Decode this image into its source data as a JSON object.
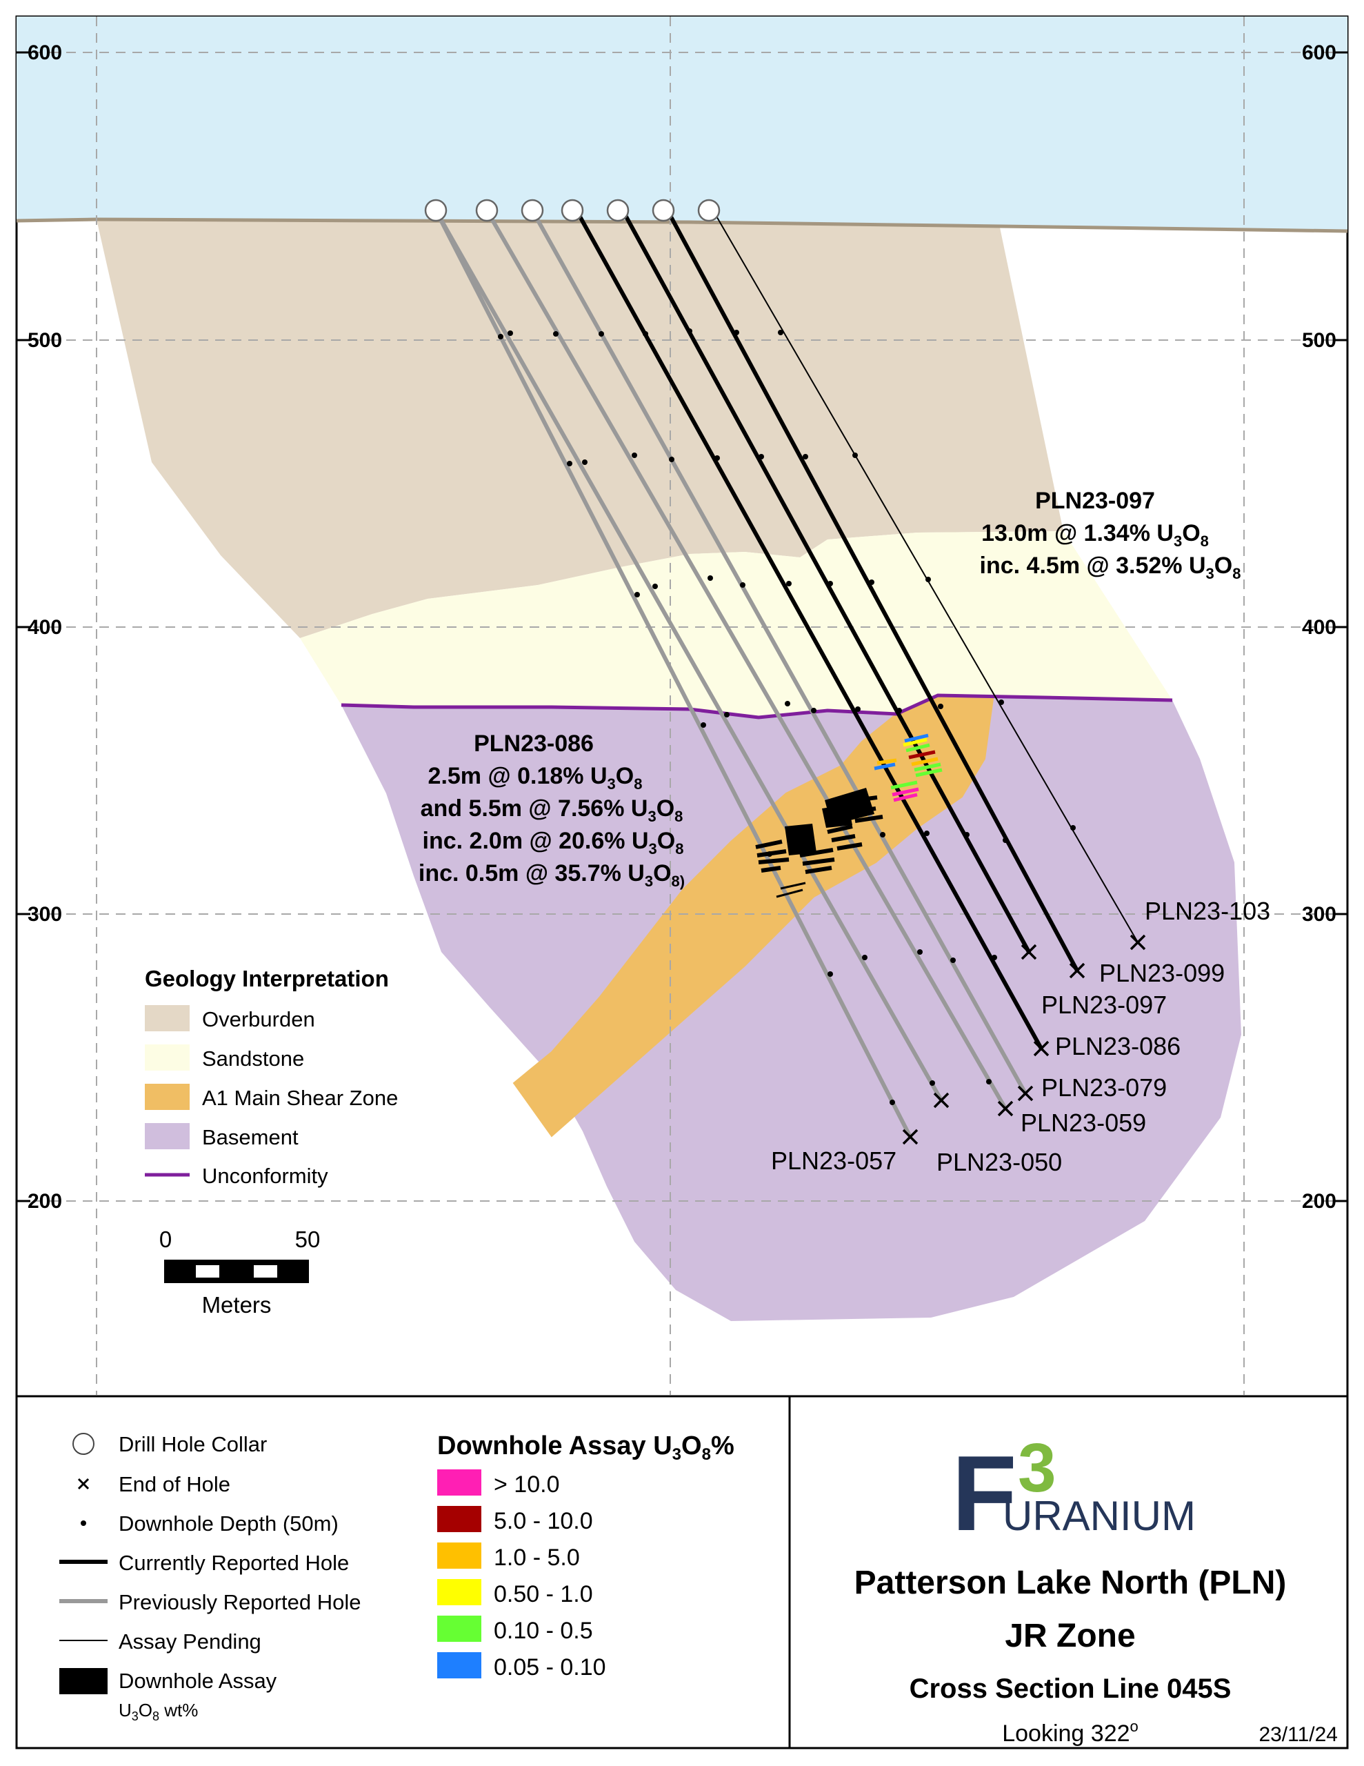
{
  "section": {
    "elevation_ticks": [
      "600",
      "500",
      "400",
      "300",
      "200"
    ],
    "collar_count": 7,
    "colors": {
      "sky": "#d7eef8",
      "overburden": "#e4d8c6",
      "sandstone": "#fdfde4",
      "shear_zone": "#f0be64",
      "basement": "#d0bedd",
      "unconformity": "#7f1f9c",
      "ground": "#a49680",
      "previous_hole": "#999999",
      "current_hole": "#000000"
    }
  },
  "holes": [
    {
      "id": "PLN23-103",
      "label": "PLN23-103",
      "status": "assay pending"
    },
    {
      "id": "PLN23-099",
      "label": "PLN23-099",
      "status": "currently reported"
    },
    {
      "id": "PLN23-097",
      "label": "PLN23-097",
      "status": "currently reported"
    },
    {
      "id": "PLN23-086",
      "label": "PLN23-086",
      "status": "currently reported"
    },
    {
      "id": "PLN23-079",
      "label": "PLN23-079",
      "status": "previously reported"
    },
    {
      "id": "PLN23-059",
      "label": "PLN23-059",
      "status": "previously reported"
    },
    {
      "id": "PLN23-057",
      "label": "PLN23-057",
      "status": "previously reported"
    },
    {
      "id": "PLN23-050",
      "label": "PLN23-050",
      "status": "previously reported"
    }
  ],
  "callouts": {
    "pln097": {
      "title": "PLN23-097",
      "line1": {
        "pre": "13.0m @ 1.34% U",
        "sub1": "3",
        "mid": "O",
        "sub2": "8"
      },
      "line2": {
        "pre": "inc. 4.5m @ 3.52% U",
        "sub1": "3",
        "mid": "O",
        "sub2": "8"
      }
    },
    "pln086": {
      "title": "PLN23-086",
      "line1": {
        "pre": "2.5m @ 0.18% U",
        "sub1": "3",
        "mid": "O",
        "sub2": "8"
      },
      "line2": {
        "pre": "and 5.5m @ 7.56% U",
        "sub1": "3",
        "mid": "O",
        "sub2": "8"
      },
      "line3": {
        "pre": "inc. 2.0m @ 20.6% U",
        "sub1": "3",
        "mid": "O",
        "sub2": "8"
      },
      "line4": {
        "pre": "inc. 0.5m @ 35.7% U",
        "sub1": "3",
        "mid": "O",
        "sub2": "8)"
      }
    }
  },
  "geology_legend": {
    "title": "Geology Interpretation",
    "items": [
      {
        "label": "Overburden",
        "color": "#e4d8c6"
      },
      {
        "label": "Sandstone",
        "color": "#fdfde4"
      },
      {
        "label": "A1 Main Shear Zone",
        "color": "#f0be64"
      },
      {
        "label": "Basement",
        "color": "#d0bedd"
      }
    ],
    "unconformity_label": "Unconformity"
  },
  "scale_bar": {
    "start_label": "0",
    "end_label": "50",
    "unit_label": "Meters"
  },
  "symbol_legend": {
    "collar": "Drill Hole Collar",
    "end_of_hole": "End of Hole",
    "depth": "Downhole Depth (50m)",
    "current": "Currently Reported Hole",
    "previous": "Previously Reported Hole",
    "pending": "Assay Pending",
    "assay_line1": "Downhole Assay",
    "assay_line2": {
      "pre": "U",
      "sub1": "3",
      "mid": "O",
      "sub2": "8",
      "post": " wt%"
    }
  },
  "assay_legend": {
    "title": {
      "pre": "Downhole Assay U",
      "sub1": "3",
      "mid": "O",
      "sub2": "8",
      "post": "%"
    },
    "bins": [
      {
        "label": "> 10.0",
        "color": "#ff1fb4"
      },
      {
        "label": "5.0 - 10.0",
        "color": "#a50000"
      },
      {
        "label": "1.0 - 5.0",
        "color": "#ffc000"
      },
      {
        "label": "0.50 - 1.0",
        "color": "#ffff00"
      },
      {
        "label": "0.10 - 0.5",
        "color": "#66ff33"
      },
      {
        "label": "0.05 -  0.10",
        "color": "#1e7fff"
      }
    ]
  },
  "logo": {
    "letter": "F",
    "superscript": "3",
    "text": "URANIUM",
    "primary": "#253659",
    "accent": "#7fba40"
  },
  "title_block": {
    "line1": "Patterson Lake North (PLN)",
    "line2": "JR Zone",
    "line3": "Cross Section Line 045S",
    "looking": "Looking 322",
    "looking_unit": "o",
    "date": "23/11/24"
  }
}
